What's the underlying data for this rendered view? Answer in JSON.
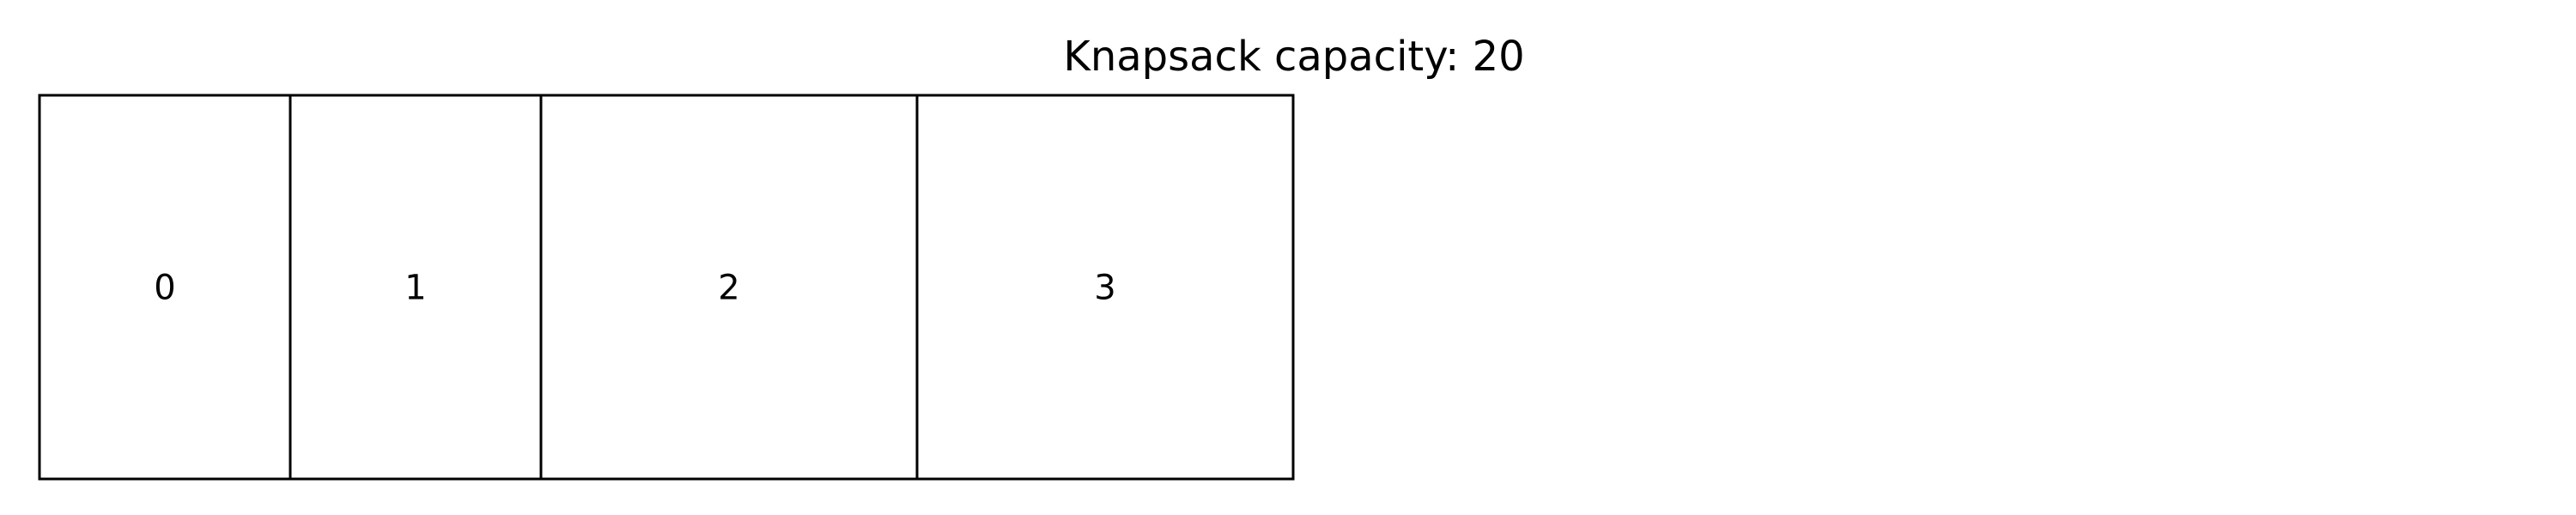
{
  "title": "Knapsack capacity: 20",
  "knapsack": {
    "capacity": 20,
    "items": [
      {
        "label": "0",
        "size": 4
      },
      {
        "label": "1",
        "size": 4
      },
      {
        "label": "2",
        "size": 6
      },
      {
        "label": "3",
        "size": 6
      }
    ]
  }
}
